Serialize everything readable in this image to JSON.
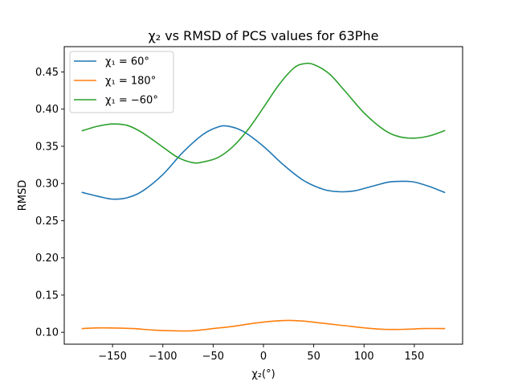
{
  "chart_data": {
    "type": "line",
    "title": "χ₂ vs RMSD of PCS values for 63Phe",
    "xlabel": "χ₂(°)",
    "ylabel": "RMSD",
    "xlim": [
      -198,
      198
    ],
    "ylim": [
      0.084,
      0.484
    ],
    "x_ticks": [
      -150,
      -100,
      -50,
      0,
      50,
      100,
      150
    ],
    "x_tick_labels": [
      "−150",
      "−100",
      "−50",
      "0",
      "50",
      "100",
      "150"
    ],
    "y_ticks": [
      0.1,
      0.15,
      0.2,
      0.25,
      0.3,
      0.35,
      0.4,
      0.45
    ],
    "y_tick_labels": [
      "0.10",
      "0.15",
      "0.20",
      "0.25",
      "0.30",
      "0.35",
      "0.40",
      "0.45"
    ],
    "grid": false,
    "legend_position": "top-left",
    "series": [
      {
        "name": "χ₁ = 60°",
        "color": "#1f77b4",
        "points": [
          [
            -180,
            0.288
          ],
          [
            -165,
            0.283
          ],
          [
            -150,
            0.279
          ],
          [
            -135,
            0.281
          ],
          [
            -120,
            0.29
          ],
          [
            -100,
            0.312
          ],
          [
            -80,
            0.342
          ],
          [
            -60,
            0.366
          ],
          [
            -45,
            0.376
          ],
          [
            -35,
            0.377
          ],
          [
            -20,
            0.37
          ],
          [
            0,
            0.35
          ],
          [
            20,
            0.325
          ],
          [
            40,
            0.304
          ],
          [
            60,
            0.292
          ],
          [
            75,
            0.289
          ],
          [
            90,
            0.29
          ],
          [
            110,
            0.297
          ],
          [
            125,
            0.302
          ],
          [
            138,
            0.303
          ],
          [
            150,
            0.302
          ],
          [
            165,
            0.296
          ],
          [
            180,
            0.288
          ]
        ]
      },
      {
        "name": "χ₁ = 180°",
        "color": "#ff7f0e",
        "points": [
          [
            -180,
            0.105
          ],
          [
            -160,
            0.106
          ],
          [
            -130,
            0.105
          ],
          [
            -110,
            0.103
          ],
          [
            -90,
            0.102
          ],
          [
            -70,
            0.102
          ],
          [
            -50,
            0.105
          ],
          [
            -30,
            0.108
          ],
          [
            -10,
            0.112
          ],
          [
            10,
            0.115
          ],
          [
            25,
            0.116
          ],
          [
            40,
            0.115
          ],
          [
            60,
            0.112
          ],
          [
            80,
            0.109
          ],
          [
            100,
            0.106
          ],
          [
            120,
            0.104
          ],
          [
            140,
            0.104
          ],
          [
            160,
            0.105
          ],
          [
            180,
            0.105
          ]
        ]
      },
      {
        "name": "χ₁ = −60°",
        "color": "#2ca02c",
        "points": [
          [
            -180,
            0.371
          ],
          [
            -165,
            0.377
          ],
          [
            -150,
            0.38
          ],
          [
            -135,
            0.378
          ],
          [
            -120,
            0.368
          ],
          [
            -100,
            0.349
          ],
          [
            -85,
            0.335
          ],
          [
            -70,
            0.328
          ],
          [
            -60,
            0.329
          ],
          [
            -45,
            0.335
          ],
          [
            -30,
            0.35
          ],
          [
            -15,
            0.373
          ],
          [
            0,
            0.402
          ],
          [
            15,
            0.432
          ],
          [
            30,
            0.455
          ],
          [
            40,
            0.461
          ],
          [
            50,
            0.46
          ],
          [
            65,
            0.448
          ],
          [
            80,
            0.426
          ],
          [
            100,
            0.395
          ],
          [
            120,
            0.372
          ],
          [
            135,
            0.363
          ],
          [
            150,
            0.361
          ],
          [
            165,
            0.364
          ],
          [
            180,
            0.371
          ]
        ]
      }
    ]
  }
}
